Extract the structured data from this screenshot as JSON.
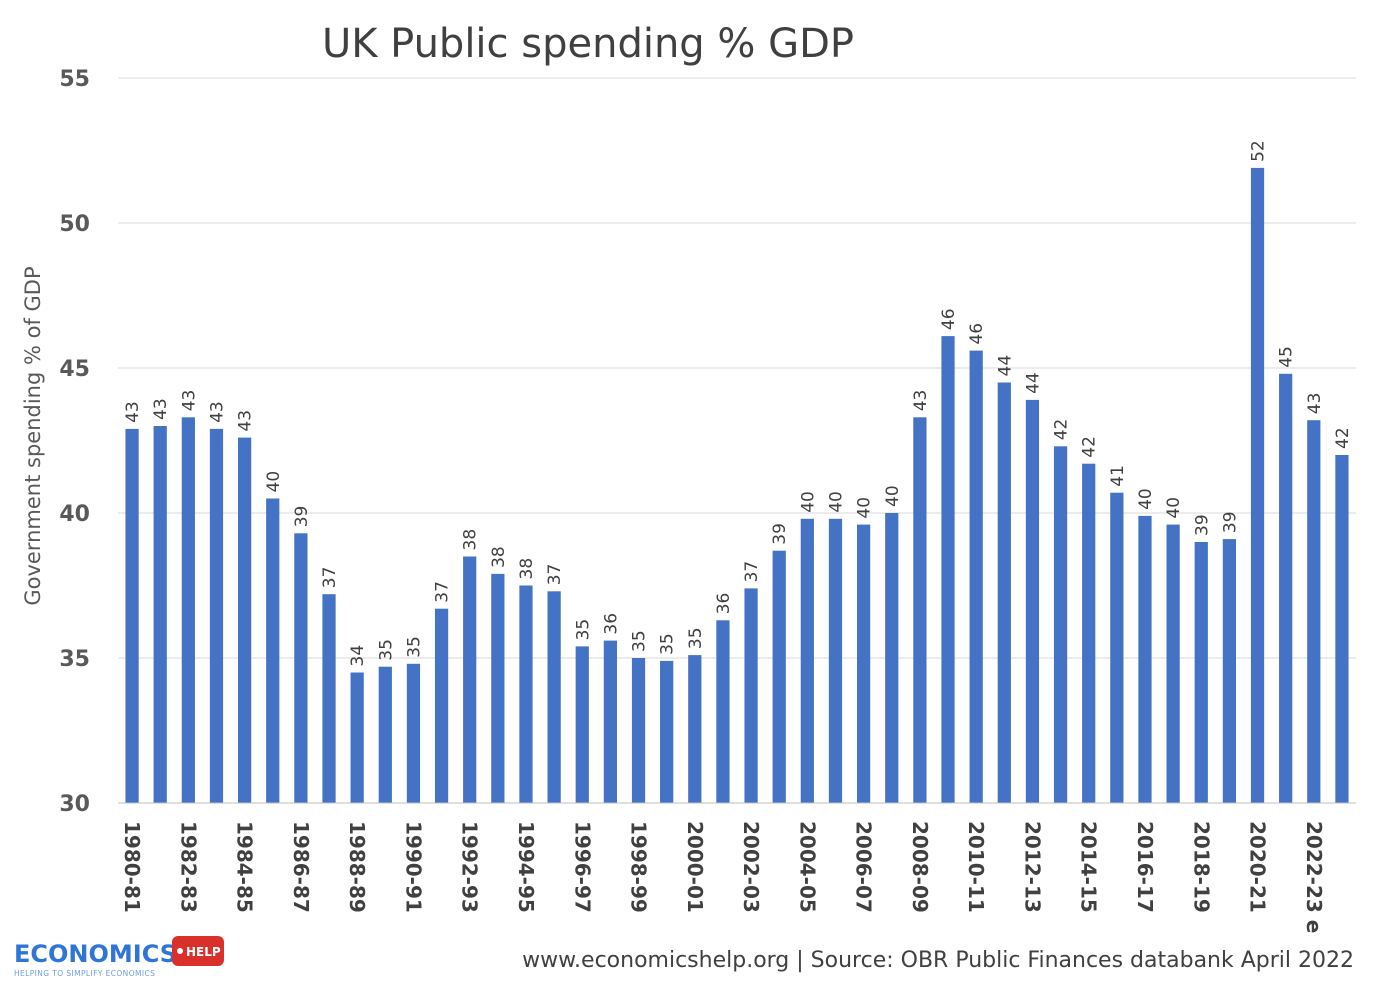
{
  "chart_data": {
    "type": "bar",
    "title": "UK Public spending % GDP",
    "xlabel": "",
    "ylabel": "Government spending % of GDP",
    "ylim": [
      30,
      55
    ],
    "yticks": [
      30,
      35,
      40,
      45,
      50,
      55
    ],
    "grid": true,
    "categories": [
      "1980-81",
      "1981-82",
      "1982-83",
      "1983-84",
      "1984-85",
      "1985-86",
      "1986-87",
      "1987-88",
      "1988-89",
      "1989-90",
      "1990-91",
      "1991-92",
      "1992-93",
      "1993-94",
      "1994-95",
      "1995-96",
      "1996-97",
      "1997-98",
      "1998-99",
      "1999-00",
      "2000-01",
      "2001-02",
      "2002-03",
      "2003-04",
      "2004-05",
      "2005-06",
      "2006-07",
      "2007-08",
      "2008-09",
      "2009-10",
      "2010-11",
      "2011-12",
      "2012-13",
      "2013-14",
      "2014-15",
      "2015-16",
      "2016-17",
      "2017-18",
      "2018-19",
      "2019-20",
      "2020-21",
      "2021-22",
      "2022-23 e",
      "2023-24"
    ],
    "visible_category_labels": [
      "1980-81",
      "1982-83",
      "1984-85",
      "1986-87",
      "1988-89",
      "1990-91",
      "1992-93",
      "1994-95",
      "1996-97",
      "1998-99",
      "2000-01",
      "2002-03",
      "2004-05",
      "2006-07",
      "2008-09",
      "2010-11",
      "2012-13",
      "2014-15",
      "2016-17",
      "2018-19",
      "2020-21",
      "2022-23 e"
    ],
    "series": [
      {
        "name": "Government spending % of GDP",
        "color": "#4472c4",
        "values": [
          42.9,
          43.0,
          43.3,
          42.9,
          42.6,
          40.5,
          39.3,
          37.2,
          34.5,
          34.7,
          34.8,
          36.7,
          38.5,
          37.9,
          37.5,
          37.3,
          35.4,
          35.6,
          35.0,
          34.9,
          35.1,
          36.3,
          37.4,
          38.7,
          39.8,
          39.8,
          39.6,
          40.0,
          43.3,
          46.1,
          45.6,
          44.5,
          43.9,
          42.3,
          41.7,
          40.7,
          39.9,
          39.6,
          39.0,
          39.1,
          51.9,
          44.8,
          43.2,
          42.0
        ]
      }
    ],
    "data_labels": [
      "43",
      "43",
      "43",
      "43",
      "43",
      "40",
      "39",
      "37",
      "34",
      "35",
      "35",
      "37",
      "38",
      "38",
      "38",
      "37",
      "35",
      "36",
      "35",
      "35",
      "35",
      "36",
      "37",
      "39",
      "40",
      "40",
      "40",
      "40",
      "43",
      "46",
      "46",
      "44",
      "44",
      "42",
      "42",
      "41",
      "40",
      "40",
      "39",
      "39",
      "52",
      "45",
      "43",
      "42"
    ]
  },
  "footer": {
    "source": "www.economicshelp.org  | Source:  OBR Public Finances databank April 2022"
  },
  "logo": {
    "main": "ECONOMICS",
    "badge": "HELP",
    "tagline": "HELPING TO SIMPLIFY ECONOMICS",
    "main_color": "#2e75d6",
    "badge_color": "#d9302c"
  }
}
